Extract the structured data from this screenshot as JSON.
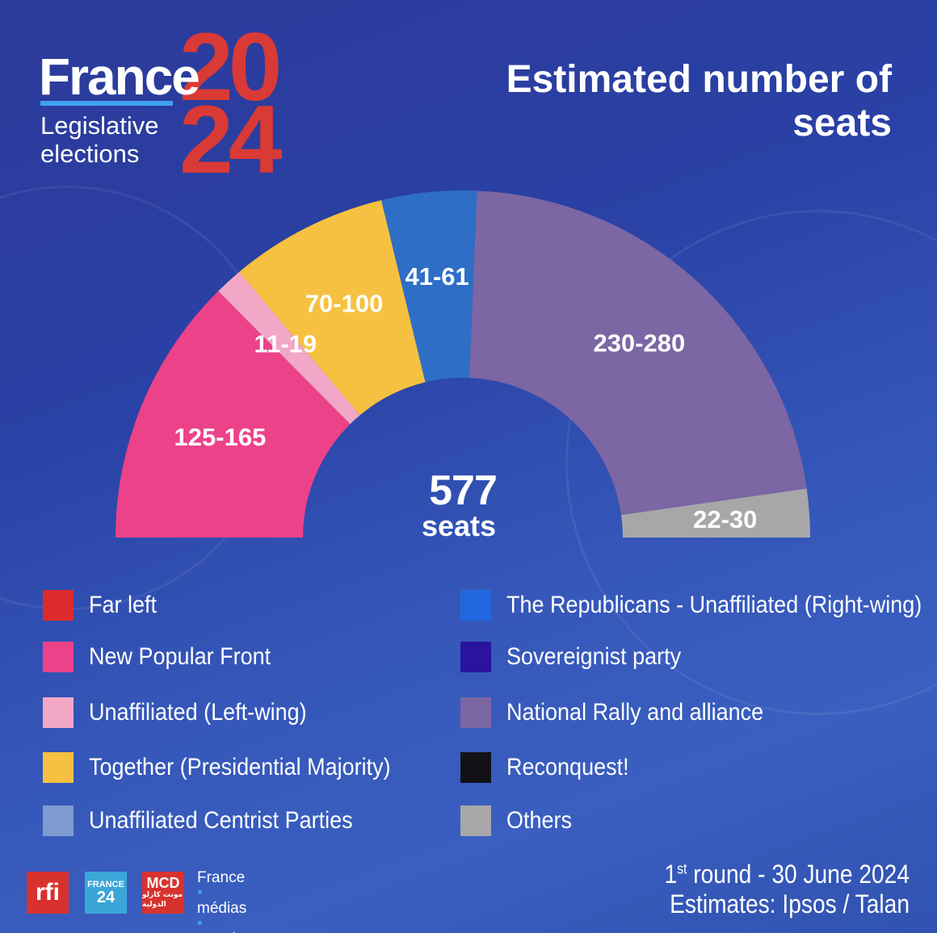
{
  "header": {
    "logo_france": "France",
    "logo_year_top": "20",
    "logo_year_bottom": "24",
    "logo_subtitle": "Legislative elections",
    "title": "Estimated number of seats"
  },
  "chart_data": {
    "type": "pie",
    "subtype": "hemicycle",
    "total_label": "577",
    "total_unit": "seats",
    "total": 577,
    "slices": [
      {
        "series": "New Popular Front",
        "label": "125-165",
        "low": 125,
        "high": 165,
        "value": 145,
        "color": "#ec428a"
      },
      {
        "series": "Unaffiliated (Left-wing)",
        "label": "11-19",
        "low": 11,
        "high": 19,
        "value": 15,
        "color": "#f2a7c6"
      },
      {
        "series": "Together (Presidential Majority)",
        "label": "70-100",
        "low": 70,
        "high": 100,
        "value": 85,
        "color": "#f6c141"
      },
      {
        "series": "The Republicans - Unaffiliated (Right-wing)",
        "label": "41-61",
        "low": 41,
        "high": 61,
        "value": 51,
        "color": "#2e6ec6"
      },
      {
        "series": "National Rally and alliance",
        "label": "230-280",
        "low": 230,
        "high": 280,
        "value": 255,
        "color": "#7c66a4"
      },
      {
        "series": "Others",
        "label": "22-30",
        "low": 22,
        "high": 30,
        "value": 26,
        "color": "#a7a7a9"
      }
    ]
  },
  "legend": {
    "left": [
      {
        "label": "Far left",
        "color": "#db2b2c"
      },
      {
        "label": "New Popular Front",
        "color": "#ec428a"
      },
      {
        "label": "Unaffiliated (Left-wing)",
        "color": "#f2a7c6"
      },
      {
        "label": "Together (Presidential Majority)",
        "color": "#f6c141"
      },
      {
        "label": "Unaffiliated Centrist Parties",
        "color": "#7d9bd0"
      }
    ],
    "right": [
      {
        "label": "The Republicans - Unaffiliated (Right-wing)",
        "color": "#2367e0"
      },
      {
        "label": "Sovereignist party",
        "color": "#2a139e"
      },
      {
        "label": "National Rally and alliance",
        "color": "#7c66a4"
      },
      {
        "label": "Reconquest!",
        "color": "#121216"
      },
      {
        "label": "Others",
        "color": "#a7a7a9"
      }
    ]
  },
  "footer": {
    "logos": {
      "rfi": "rfi",
      "france24_top": "FRANCE",
      "france24_bottom": "24",
      "mcd": "MCD",
      "mcd_arabic": "مونت كارلو الدولية",
      "fmm_line1": "France",
      "fmm_line2": "médias",
      "fmm_line3": "monde"
    },
    "round_prefix": "1",
    "round_sup": "st",
    "round_text": " round - 30 June 2024",
    "source": "Estimates: Ipsos / Talan"
  }
}
